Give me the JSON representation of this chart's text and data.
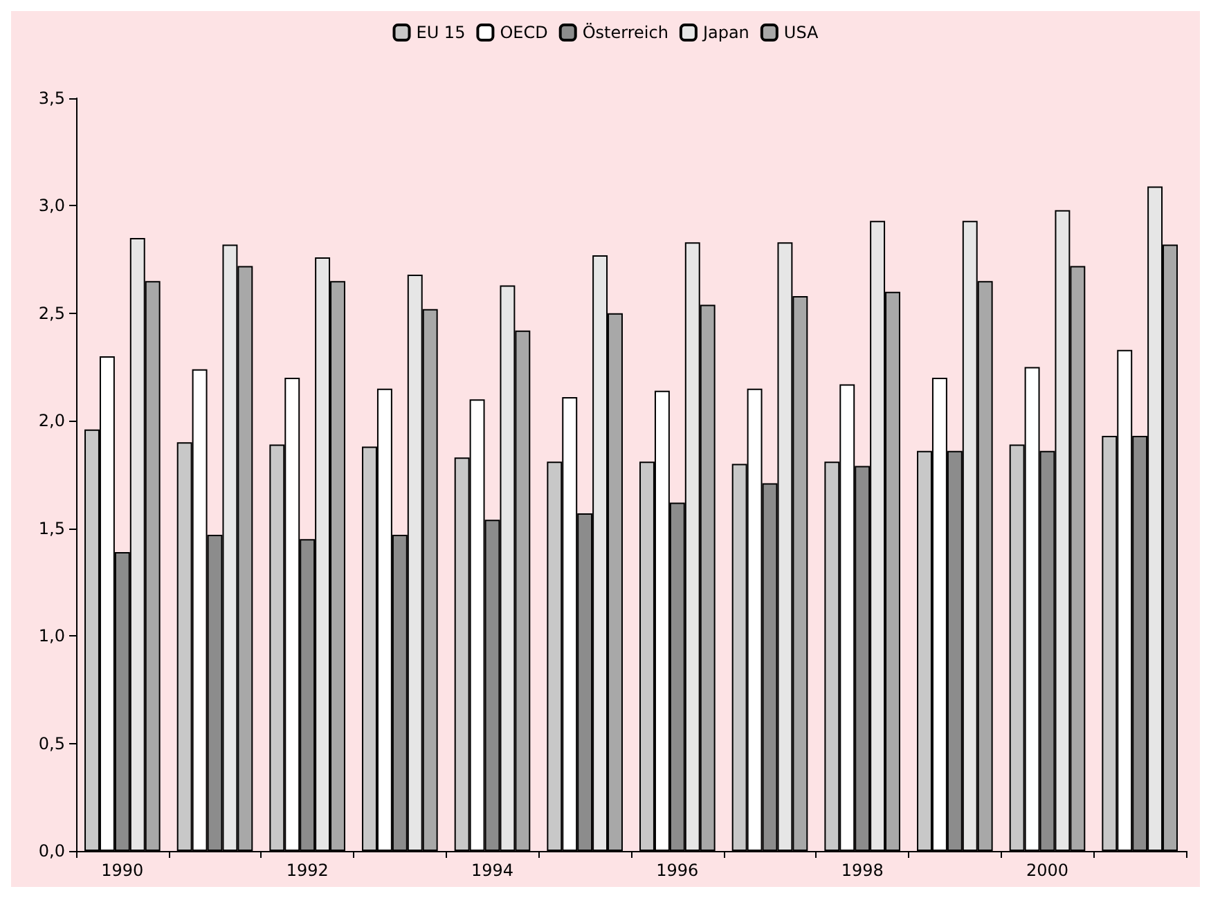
{
  "chart_data": {
    "type": "bar",
    "categories": [
      "1990",
      null,
      "1992",
      null,
      "1994",
      null,
      "1996",
      null,
      "1998",
      null,
      "2000",
      null
    ],
    "series": [
      {
        "name": "EU 15",
        "color": "#c8c8c8",
        "values": [
          1.96,
          1.9,
          1.89,
          1.88,
          1.83,
          1.81,
          1.81,
          1.8,
          1.81,
          1.86,
          1.89,
          1.93
        ]
      },
      {
        "name": "OECD",
        "color": "#ffffff",
        "values": [
          2.3,
          2.24,
          2.2,
          2.15,
          2.1,
          2.11,
          2.14,
          2.15,
          2.17,
          2.2,
          2.25,
          2.33
        ]
      },
      {
        "name": "Österreich",
        "color": "#8c8c8c",
        "values": [
          1.39,
          1.47,
          1.45,
          1.47,
          1.54,
          1.57,
          1.62,
          1.71,
          1.79,
          1.86,
          1.86,
          1.93
        ]
      },
      {
        "name": "Japan",
        "color": "#e6e6e6",
        "values": [
          2.85,
          2.82,
          2.76,
          2.68,
          2.63,
          2.77,
          2.83,
          2.83,
          2.93,
          2.93,
          2.98,
          3.09
        ]
      },
      {
        "name": "USA",
        "color": "#a8a8a8",
        "values": [
          2.65,
          2.72,
          2.65,
          2.52,
          2.42,
          2.5,
          2.54,
          2.58,
          2.6,
          2.65,
          2.72,
          2.82
        ]
      }
    ],
    "ylim": [
      0,
      3.5
    ],
    "yticks": [
      {
        "value": 0,
        "label": "0,0"
      },
      {
        "value": 0.5,
        "label": "0,5"
      },
      {
        "value": 1,
        "label": "1,0"
      },
      {
        "value": 1.5,
        "label": "1,5"
      },
      {
        "value": 2,
        "label": "2,0"
      },
      {
        "value": 2.5,
        "label": "2,5"
      },
      {
        "value": 3,
        "label": "3,0"
      },
      {
        "value": 3.5,
        "label": "3,5"
      }
    ],
    "grid": false,
    "legend": "top"
  }
}
